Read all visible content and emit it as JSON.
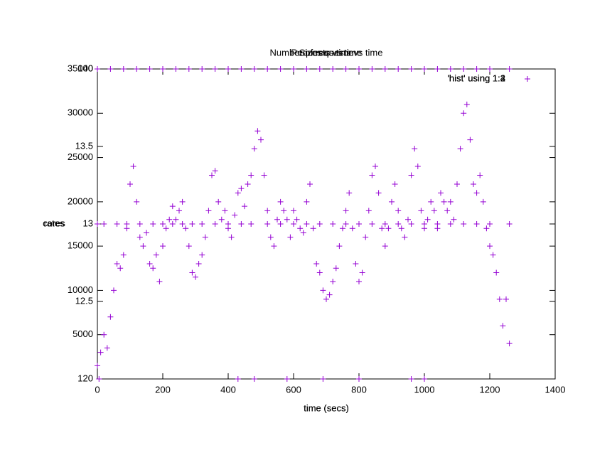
{
  "chart_data": [
    {
      "type": "scatter",
      "title": "Number of requests vs time",
      "x_label": "time (secs)",
      "y_label": "cores",
      "series": [
        {
          "name": "'hist' using 1:2",
          "color": "#9400d3",
          "x": [
            0,
            10,
            20,
            30,
            40,
            50,
            60,
            70,
            80,
            90,
            100,
            110,
            120,
            130,
            140,
            150,
            160,
            170,
            180,
            190,
            200,
            210,
            220,
            230,
            240,
            250,
            260,
            270,
            280,
            290,
            300,
            310,
            320,
            330,
            340,
            350,
            360,
            370,
            380,
            390,
            400,
            410,
            420,
            430,
            440,
            450,
            460,
            470,
            480,
            490,
            500,
            510,
            520,
            530,
            540,
            550,
            560,
            570,
            580,
            590,
            600,
            610,
            620,
            630,
            640,
            650,
            660,
            670,
            680,
            690,
            700,
            710,
            720,
            730,
            740,
            750,
            760,
            770,
            780,
            790,
            800,
            810,
            820,
            830,
            840,
            850,
            860,
            870,
            880,
            890,
            900,
            910,
            920,
            930,
            940,
            950,
            960,
            970,
            980,
            990,
            1000,
            1010,
            1020,
            1030,
            1040,
            1050,
            1060,
            1070,
            1080,
            1090,
            1100,
            1110,
            1120,
            1130,
            1140,
            1150,
            1160,
            1170,
            1180,
            1190,
            1200,
            1210,
            1220,
            1230,
            1240,
            1250,
            1260
          ],
          "values": [
            1500,
            3000,
            5000,
            3500,
            7000,
            10000,
            13000,
            12500,
            14000,
            17000,
            22000,
            24000,
            20000,
            16000,
            15000,
            16500,
            13000,
            12500,
            14000,
            11000,
            15000,
            17000,
            18000,
            19500,
            18000,
            19000,
            20000,
            17000,
            15000,
            12000,
            11500,
            13000,
            14000,
            16000,
            19000,
            23000,
            23500,
            20000,
            18000,
            19000,
            17000,
            16000,
            18500,
            21000,
            21500,
            19500,
            22000,
            23000,
            26000,
            28000,
            27000,
            23000,
            19000,
            16000,
            15000,
            18000,
            20000,
            19000,
            18000,
            16000,
            19000,
            18000,
            17000,
            16500,
            20000,
            22000,
            17000,
            13000,
            12000,
            10000,
            9000,
            9500,
            11000,
            12500,
            15000,
            17000,
            19000,
            21000,
            17000,
            13000,
            11000,
            12000,
            16000,
            19000,
            23000,
            24000,
            21000,
            17000,
            15000,
            17000,
            20000,
            22000,
            19000,
            17000,
            16000,
            18000,
            23000,
            26000,
            24000,
            19000,
            17000,
            18000,
            20000,
            19000,
            17000,
            21000,
            20000,
            19000,
            20000,
            18000,
            22000,
            26000,
            30000,
            31000,
            27000,
            22000,
            21000,
            23000,
            20000,
            17000,
            15000,
            14000,
            12000,
            9000,
            6000,
            9000,
            4000
          ]
        }
      ],
      "xlim": [
        0,
        1400
      ],
      "xticks": [
        0,
        200,
        400,
        600,
        800,
        1000,
        1200,
        1400
      ],
      "ylim": [
        0,
        35000
      ],
      "yticks": [
        5000,
        10000,
        15000,
        20000,
        25000,
        30000,
        35000
      ]
    },
    {
      "type": "scatter",
      "title": "Sizes vs time",
      "x_label": "time (secs)",
      "y_label": "rates",
      "series": [
        {
          "name": "'hist' using 1:3",
          "color": "#9400d3",
          "x": [
            0,
            20,
            60,
            90,
            130,
            170,
            200,
            230,
            260,
            290,
            320,
            360,
            400,
            440,
            470,
            520,
            560,
            600,
            640,
            680,
            720,
            760,
            800,
            840,
            880,
            920,
            960,
            1000,
            1040,
            1080,
            1120,
            1160,
            1200,
            1260
          ],
          "values": [
            13,
            13,
            13,
            13,
            13,
            13,
            13,
            13,
            13,
            13,
            13,
            13,
            13,
            13,
            13,
            13,
            13,
            13,
            13,
            13,
            13,
            13,
            13,
            13,
            13,
            13,
            13,
            13,
            13,
            13,
            13,
            13,
            13,
            13
          ]
        }
      ],
      "xlim": [
        0,
        1400
      ],
      "ylim": [
        12,
        14
      ],
      "yticks": [
        12.5,
        13,
        13.5
      ]
    },
    {
      "type": "scatter",
      "title": "Requests vs time",
      "series": [
        {
          "name": "'hist' using 1:4",
          "color": "#9400d3",
          "x": [
            0,
            40,
            80,
            120,
            160,
            200,
            240,
            280,
            320,
            360,
            400,
            440,
            480,
            520,
            560,
            600,
            640,
            680,
            720,
            760,
            800,
            840,
            880,
            920,
            960,
            1000,
            1040,
            1080,
            1120,
            1160,
            1200,
            1260,
            5,
            430,
            480,
            580,
            690,
            800,
            960,
            1000
          ],
          "values": [
            140,
            140,
            140,
            140,
            140,
            140,
            140,
            140,
            140,
            140,
            140,
            140,
            140,
            140,
            140,
            140,
            140,
            140,
            140,
            140,
            140,
            140,
            140,
            140,
            140,
            140,
            140,
            140,
            140,
            140,
            140,
            140,
            120,
            120,
            120,
            120,
            120,
            120,
            120,
            120
          ]
        }
      ],
      "xlim": [
        0,
        1400
      ],
      "ylim": [
        120,
        140
      ],
      "yticks": [
        120,
        140
      ]
    }
  ]
}
